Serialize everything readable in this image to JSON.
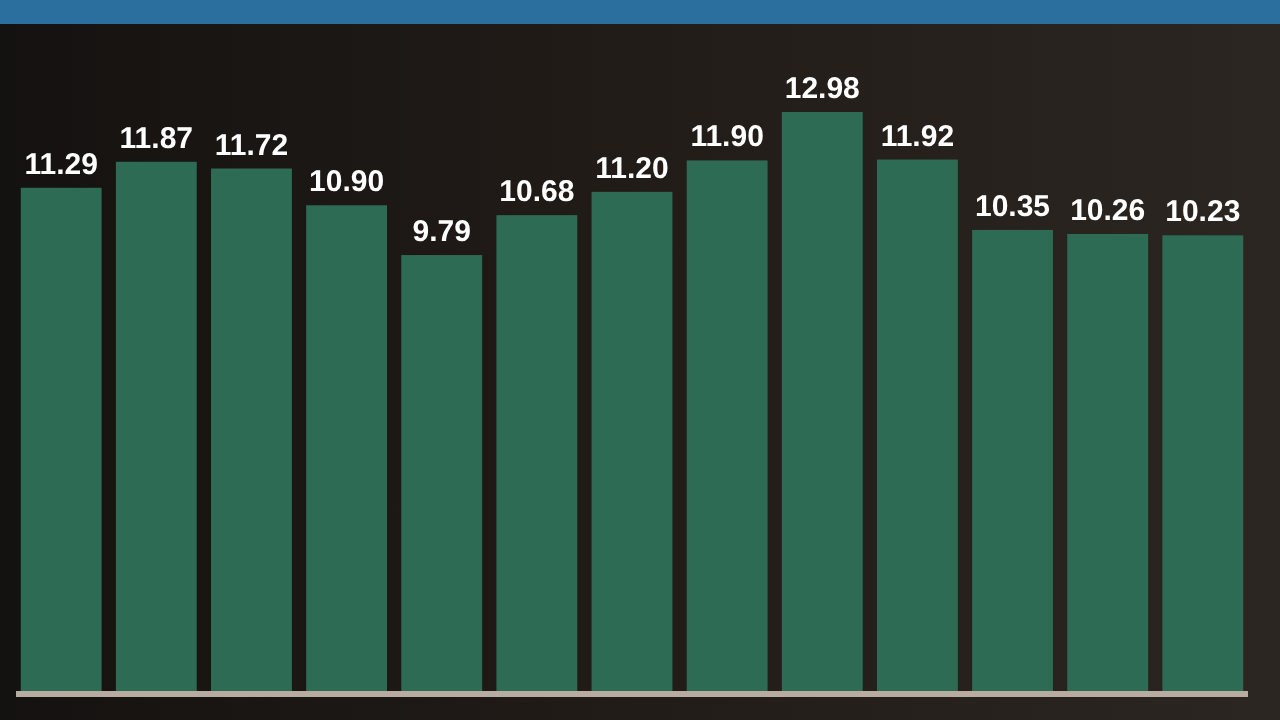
{
  "chart_data": {
    "type": "bar",
    "categories": [
      null,
      null,
      null,
      null,
      null,
      null,
      null,
      null,
      null,
      null,
      null,
      null,
      null
    ],
    "values": [
      11.29,
      11.87,
      11.72,
      10.9,
      9.79,
      10.68,
      11.2,
      11.9,
      12.98,
      11.92,
      10.35,
      10.26,
      10.23
    ],
    "color": "#2e6b55",
    "data_labels": true,
    "value_labels": [
      "11.29",
      "11.87",
      "11.72",
      "10.90",
      "9.79",
      "10.68",
      "11.20",
      "11.90",
      "12.98",
      "11.92",
      "10.35",
      "10.26",
      "10.23"
    ]
  }
}
